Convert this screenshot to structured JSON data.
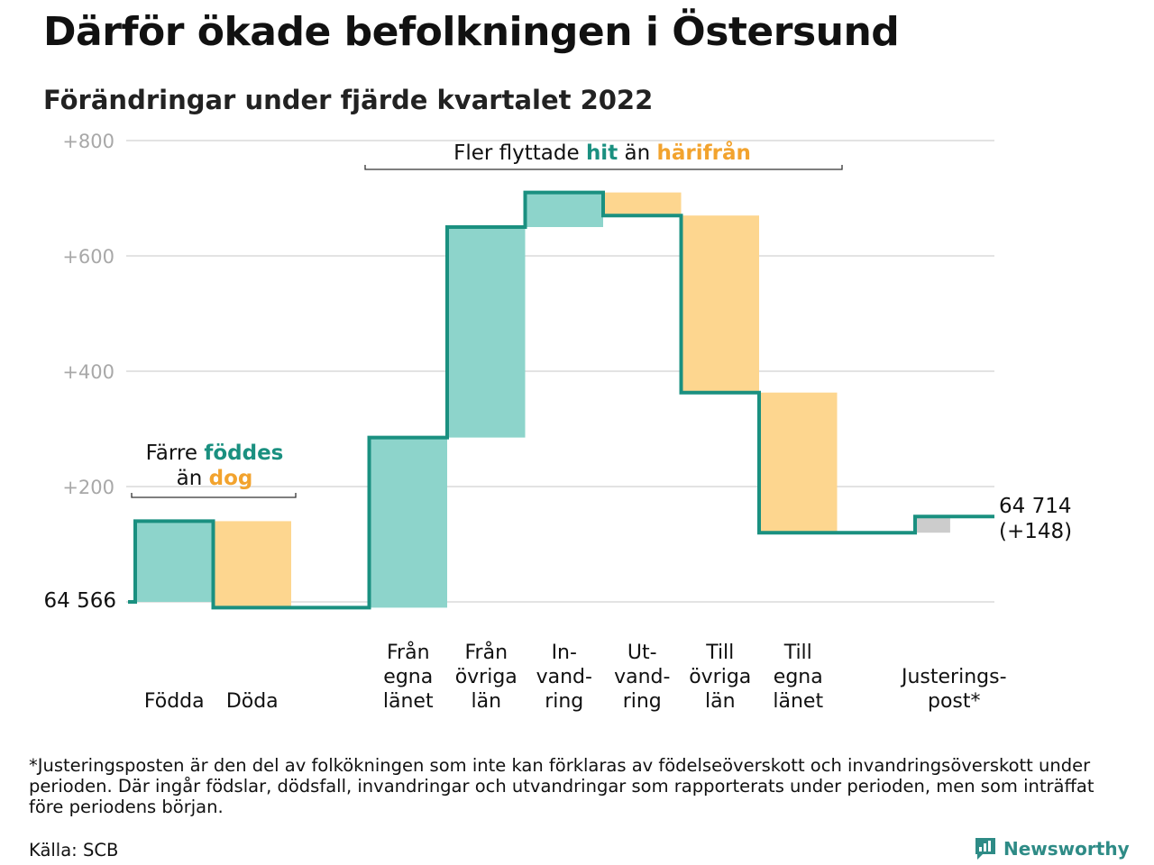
{
  "title": "Därför ökade befolkningen i Östersund",
  "subtitle": "Förändringar under fjärde kvartalet 2022",
  "chart_data": {
    "type": "waterfall",
    "start_value": 64566,
    "start_label": "64 566",
    "end_label_line1": "64 714",
    "end_label_line2": "(+148)",
    "y_ticks": [
      "+200",
      "+400",
      "+600",
      "+800"
    ],
    "y_tick_values": [
      200,
      400,
      600,
      800
    ],
    "ylim": [
      -10,
      800
    ],
    "grid": true,
    "colors": {
      "increase": "#8dd4cb",
      "decrease": "#fdd68f",
      "adjustment": "#cccccc",
      "step_line": "#1a9080",
      "grid": "#e3e3e3",
      "tick": "#a8a8a8"
    },
    "steps": [
      {
        "label_lines": [
          "Födda"
        ],
        "delta": 140,
        "kind": "increase"
      },
      {
        "label_lines": [
          "Döda"
        ],
        "delta": -150,
        "kind": "decrease"
      },
      {
        "label_lines": [],
        "delta": 0,
        "kind": "gap"
      },
      {
        "label_lines": [
          "Från",
          "egna",
          "länet"
        ],
        "delta": 295,
        "kind": "increase"
      },
      {
        "label_lines": [
          "Från",
          "övriga",
          "län"
        ],
        "delta": 365,
        "kind": "increase"
      },
      {
        "label_lines": [
          "In-",
          "vand-",
          "ring"
        ],
        "delta": 60,
        "kind": "increase"
      },
      {
        "label_lines": [
          "Ut-",
          "vand-",
          "ring"
        ],
        "delta": -40,
        "kind": "decrease"
      },
      {
        "label_lines": [
          "Till",
          "övriga",
          "län"
        ],
        "delta": -307,
        "kind": "decrease"
      },
      {
        "label_lines": [
          "Till",
          "egna",
          "länet"
        ],
        "delta": -243,
        "kind": "decrease"
      },
      {
        "label_lines": [],
        "delta": 0,
        "kind": "gap"
      },
      {
        "label_lines": [
          "Justerings-",
          "post*"
        ],
        "delta": 28,
        "kind": "adjustment"
      }
    ],
    "annotations": {
      "births": {
        "line1_pre": "Färre ",
        "line1_hl": "föddes",
        "line2_pre": "än ",
        "line2_hl": "dog"
      },
      "migration": {
        "pre": "Fler flyttade ",
        "hl1": "hit",
        "mid": " än ",
        "hl2": "härifrån"
      }
    },
    "highlight_colors": {
      "hit": "#1a9080",
      "away": "#f2a32e"
    }
  },
  "footnote": "*Justeringsposten är den del av folkökningen som inte kan förklaras av födelseöverskott och invandringsöverskott under perioden. Där ingår födslar, dödsfall, invandringar och utvandringar som rapporterats under perioden, men som inträffat före periodens början.",
  "source": "Källa: SCB",
  "brand": {
    "name": "Newsworthy",
    "icon": "newsworthy-logo-icon"
  }
}
